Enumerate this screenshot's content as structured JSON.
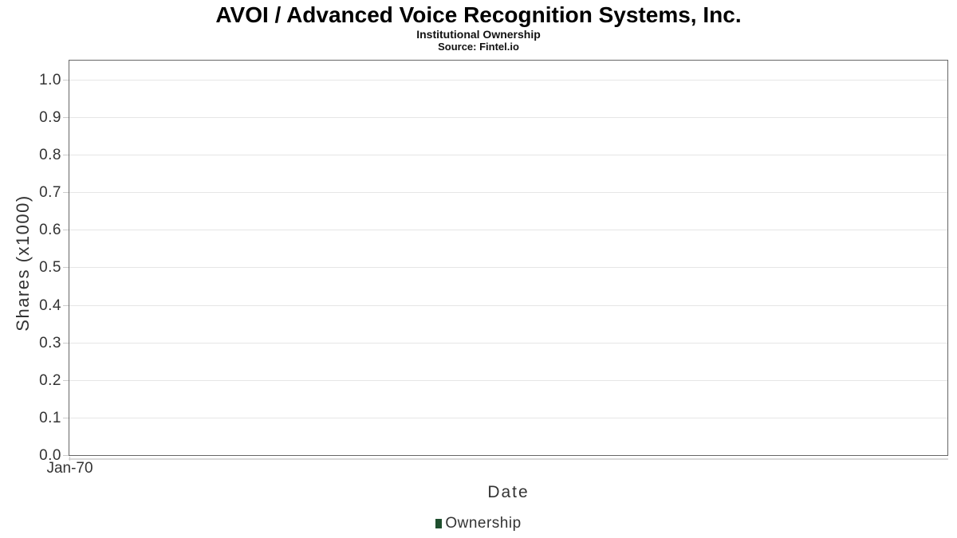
{
  "header": {
    "title": "AVOI / Advanced Voice Recognition Systems, Inc.",
    "subtitle": "Institutional Ownership",
    "source": "Source: Fintel.io"
  },
  "chart_data": {
    "type": "area",
    "title": "AVOI / Advanced Voice Recognition Systems, Inc.",
    "subtitle": "Institutional Ownership",
    "source": "Source: Fintel.io",
    "xlabel": "Date",
    "ylabel": "Shares (x1000)",
    "x_ticks": [
      "Jan-70"
    ],
    "y_ticks": [
      0.0,
      0.1,
      0.2,
      0.3,
      0.4,
      0.5,
      0.6,
      0.7,
      0.8,
      0.9,
      1.0
    ],
    "ylim": [
      0,
      1.05
    ],
    "grid": "horizontal-only",
    "legend_position": "bottom-center",
    "series": [
      {
        "name": "Ownership",
        "color": "#1f4f2e",
        "values": []
      }
    ]
  },
  "colors": {
    "series_green": "#1f4f2e",
    "axis_text": "#333333",
    "title_text": "#000000",
    "gridline": "#e6e6e6",
    "plot_border": "#666666",
    "tick_mark": "#cccccc",
    "axis_line": "#d9d9d9",
    "background": "#ffffff"
  }
}
